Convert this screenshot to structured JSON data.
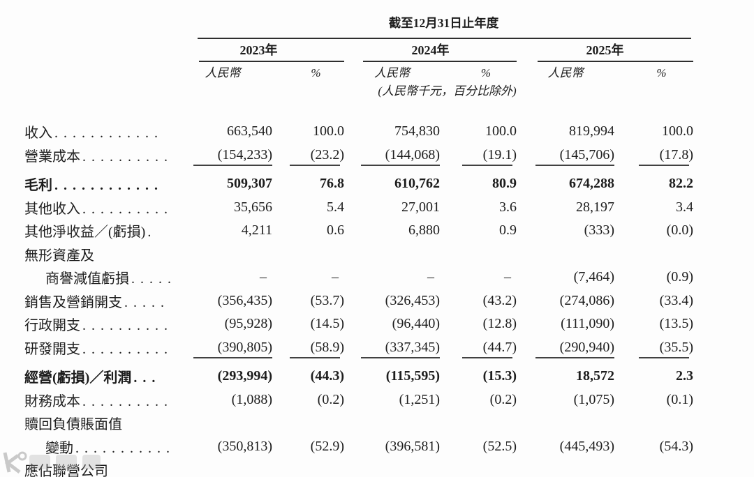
{
  "page": {
    "background": "#fdfdfd",
    "text_color": "#1d1d1d",
    "rule_color": "#2e2e2e"
  },
  "table": {
    "period_title": "截至12月31日止年度",
    "year_groups": [
      "2023年",
      "2024年",
      "2025年"
    ],
    "subheaders": {
      "currency": "人民幣",
      "percent": "%"
    },
    "unit_note": "(人民幣千元，百分比除外)",
    "rows": [
      {
        "label": "收入",
        "dots": "............",
        "bold": false,
        "rule_below": false,
        "indent": false,
        "values": [
          "663,540",
          "100.0",
          "754,830",
          "100.0",
          "819,994",
          "100.0"
        ]
      },
      {
        "label": "營業成本",
        "dots": "..........",
        "bold": false,
        "rule_below": true,
        "indent": false,
        "values": [
          "(154,233)",
          "(23.2)",
          "(144,068)",
          "(19.1)",
          "(145,706)",
          "(17.8)"
        ]
      },
      {
        "label": "毛利",
        "dots": "............",
        "bold": true,
        "rule_below": false,
        "indent": false,
        "values": [
          "509,307",
          "76.8",
          "610,762",
          "80.9",
          "674,288",
          "82.2"
        ]
      },
      {
        "label": "其他收入",
        "dots": "..........",
        "bold": false,
        "rule_below": false,
        "indent": false,
        "values": [
          "35,656",
          "5.4",
          "27,001",
          "3.6",
          "28,197",
          "3.4"
        ]
      },
      {
        "label": "其他淨收益／(虧損)",
        "dots": ".",
        "bold": false,
        "rule_below": false,
        "indent": false,
        "values": [
          "4,211",
          "0.6",
          "6,880",
          "0.9",
          "(333)",
          "(0.0)"
        ]
      },
      {
        "label": "無形資產及",
        "dots": "",
        "bold": false,
        "rule_below": false,
        "indent": false,
        "values": [
          "",
          "",
          "",
          "",
          "",
          ""
        ]
      },
      {
        "label": "商譽減值虧損",
        "dots": ".....",
        "bold": false,
        "rule_below": false,
        "indent": true,
        "values": [
          "–",
          "–",
          "–",
          "–",
          "(7,464)",
          "(0.9)"
        ]
      },
      {
        "label": "銷售及營銷開支",
        "dots": ".....",
        "bold": false,
        "rule_below": false,
        "indent": false,
        "values": [
          "(356,435)",
          "(53.7)",
          "(326,453)",
          "(43.2)",
          "(274,086)",
          "(33.4)"
        ]
      },
      {
        "label": "行政開支",
        "dots": "..........",
        "bold": false,
        "rule_below": false,
        "indent": false,
        "values": [
          "(95,928)",
          "(14.5)",
          "(96,440)",
          "(12.8)",
          "(111,090)",
          "(13.5)"
        ]
      },
      {
        "label": "研發開支",
        "dots": "..........",
        "bold": false,
        "rule_below": true,
        "indent": false,
        "values": [
          "(390,805)",
          "(58.9)",
          "(337,345)",
          "(44.7)",
          "(290,940)",
          "(35.5)"
        ]
      },
      {
        "label": "經營(虧損)／利潤",
        "dots": "...",
        "bold": true,
        "rule_below": false,
        "indent": false,
        "values": [
          "(293,994)",
          "(44.3)",
          "(115,595)",
          "(15.3)",
          "18,572",
          "2.3"
        ]
      },
      {
        "label": "財務成本",
        "dots": "..........",
        "bold": false,
        "rule_below": false,
        "indent": false,
        "values": [
          "(1,088)",
          "(0.2)",
          "(1,251)",
          "(0.2)",
          "(1,075)",
          "(0.1)"
        ]
      },
      {
        "label": "贖回負債賬面值",
        "dots": "",
        "bold": false,
        "rule_below": false,
        "indent": false,
        "values": [
          "",
          "",
          "",
          "",
          "",
          ""
        ]
      },
      {
        "label": "變動",
        "dots": "...........",
        "bold": false,
        "rule_below": false,
        "indent": true,
        "values": [
          "(350,813)",
          "(52.9)",
          "(396,581)",
          "(52.5)",
          "(445,493)",
          "(54.3)"
        ]
      },
      {
        "label": "應佔聯營公司",
        "dots": "",
        "bold": false,
        "rule_below": false,
        "indent": false,
        "values": [
          "",
          "",
          "",
          "",
          "",
          ""
        ]
      }
    ]
  }
}
